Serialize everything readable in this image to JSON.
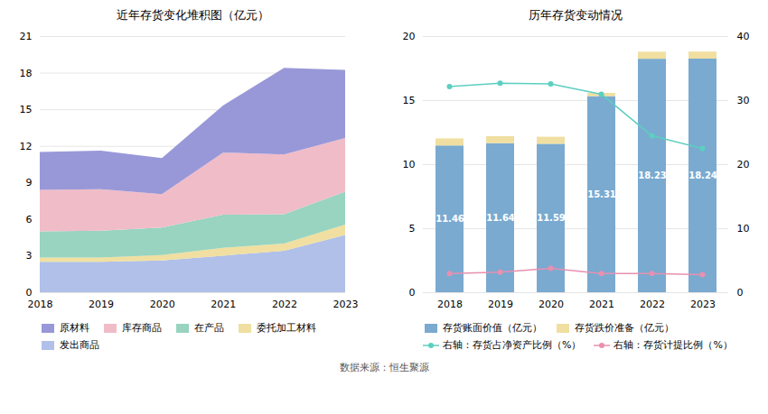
{
  "chart_data": [
    {
      "type": "area",
      "title": "近年存货变化堆积图（亿元）",
      "x": [
        2018,
        2019,
        2020,
        2021,
        2022,
        2023
      ],
      "xlim": [
        2018,
        2023
      ],
      "xticks": [
        2018,
        2019,
        2020,
        2021,
        2022,
        2023
      ],
      "ylim": [
        0,
        21
      ],
      "yticks": [
        0,
        3,
        6,
        9,
        12,
        15,
        18,
        21
      ],
      "stacked": true,
      "grid": true,
      "legend": "bottom",
      "series": [
        {
          "name": "发出商品",
          "color": "#b0c0e8",
          "values": [
            2.5,
            2.5,
            2.6,
            3.0,
            3.4,
            4.7
          ]
        },
        {
          "name": "委托加工材料",
          "color": "#f0dfa0",
          "values": [
            0.35,
            0.35,
            0.45,
            0.65,
            0.6,
            0.85
          ]
        },
        {
          "name": "在产品",
          "color": "#98d4c0",
          "values": [
            2.15,
            2.2,
            2.25,
            2.7,
            2.4,
            2.7
          ]
        },
        {
          "name": "库存商品",
          "color": "#f0bcc8",
          "values": [
            3.4,
            3.4,
            2.75,
            5.1,
            4.9,
            4.4
          ]
        },
        {
          "name": "原材料",
          "color": "#9898d8",
          "values": [
            3.1,
            3.15,
            2.95,
            3.86,
            7.1,
            5.58
          ]
        }
      ]
    },
    {
      "type": "bar",
      "title": "历年存货变动情况",
      "categories": [
        "2018",
        "2019",
        "2020",
        "2021",
        "2022",
        "2023"
      ],
      "ylim": [
        0,
        20
      ],
      "yticks": [
        0,
        5,
        10,
        15,
        20
      ],
      "y2lim": [
        0,
        40
      ],
      "y2ticks": [
        0,
        10,
        20,
        30,
        40
      ],
      "stacked": true,
      "grid": true,
      "legend": "bottom",
      "series": [
        {
          "name": "存货账面价值（亿元）",
          "type": "bar",
          "color": "#7aaad0",
          "data_labels": true,
          "values": [
            11.46,
            11.64,
            11.59,
            15.31,
            18.23,
            18.24
          ]
        },
        {
          "name": "存货跌价准备（亿元）",
          "type": "bar",
          "color": "#f0dfa0",
          "values": [
            0.55,
            0.55,
            0.55,
            0.25,
            0.55,
            0.55
          ]
        },
        {
          "name": "右轴：存货占净资产比例（%）",
          "type": "line",
          "axis": "y2",
          "color": "#5ccfc0",
          "marker": "circle",
          "values": [
            32.2,
            32.7,
            32.6,
            31.0,
            24.5,
            22.5
          ]
        },
        {
          "name": "右轴：存货计提比例（%）",
          "type": "line",
          "axis": "y2",
          "color": "#e890b0",
          "marker": "circle",
          "values": [
            3.0,
            3.2,
            3.8,
            3.0,
            3.0,
            2.8
          ]
        }
      ]
    }
  ],
  "caption": "数据来源：恒生聚源"
}
